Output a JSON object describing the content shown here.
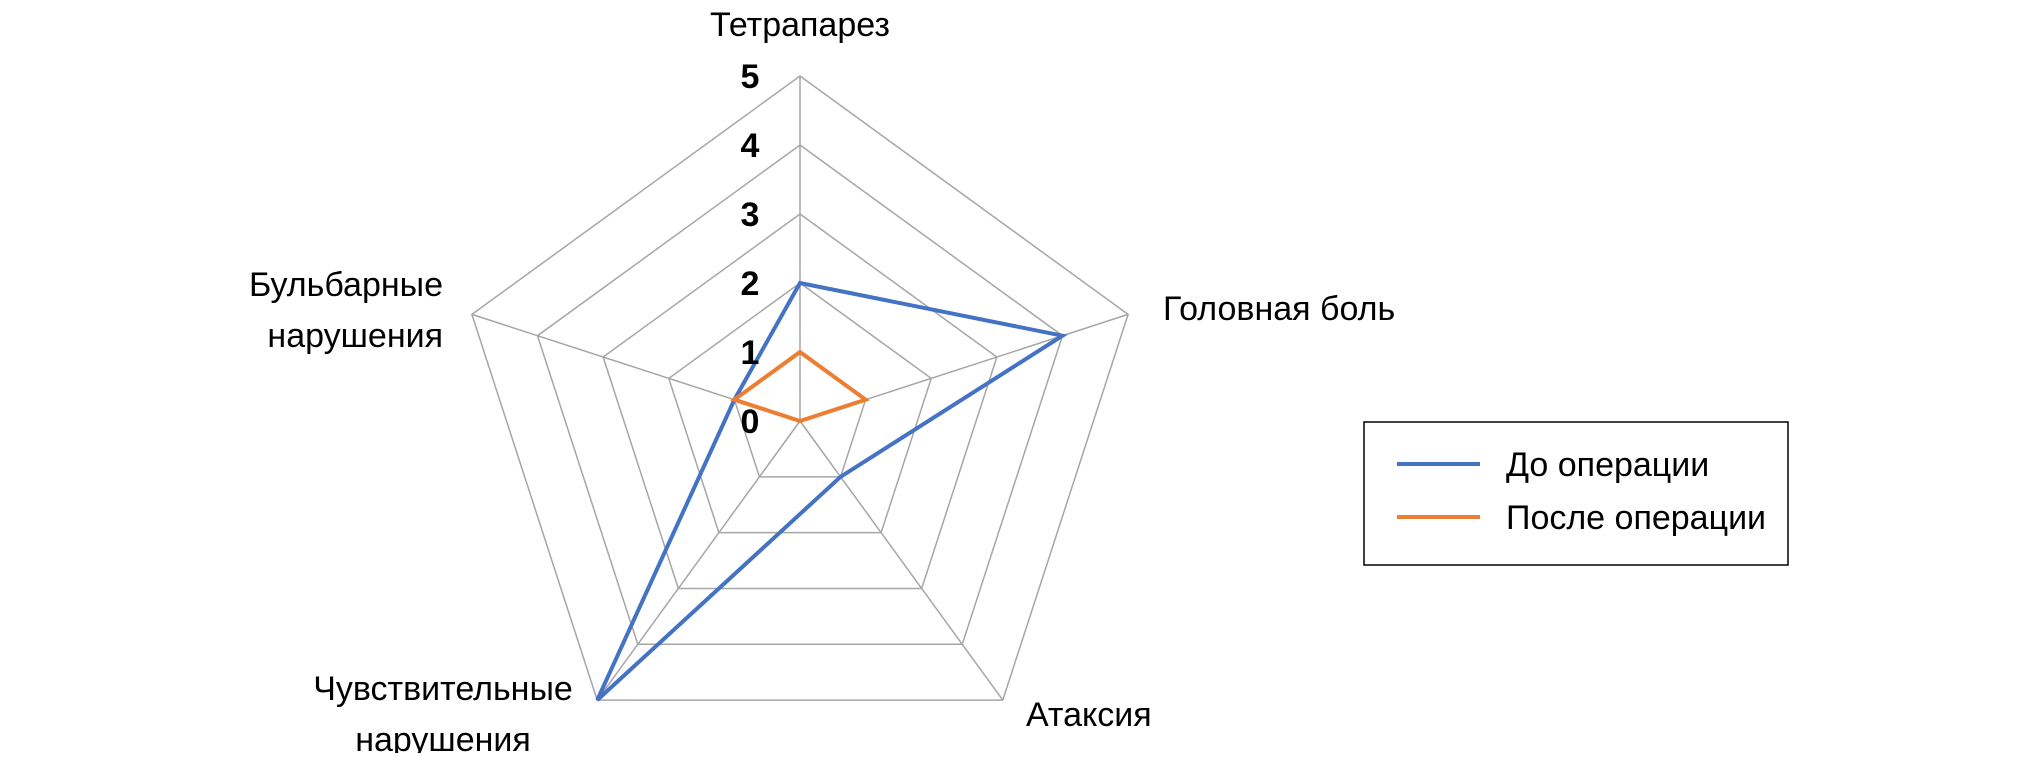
{
  "chart_data": {
    "type": "radar",
    "axes": [
      "Тетрапарез",
      "Головная боль",
      "Атаксия",
      "Чувствительные нарушения",
      "Бульбарные нарушения"
    ],
    "axis_label_lines": [
      [
        "Тетрапарез"
      ],
      [
        "Головная боль"
      ],
      [
        "Атаксия"
      ],
      [
        "Чувствительные",
        "нарушения"
      ],
      [
        "Бульбарные",
        "нарушения"
      ]
    ],
    "ticks": [
      "0",
      "1",
      "2",
      "3",
      "4",
      "5"
    ],
    "range": [
      0,
      5
    ],
    "grid": true,
    "legend_position": "right",
    "series": [
      {
        "name": "До операции",
        "values": [
          2,
          4,
          1,
          5,
          1
        ],
        "color": "#4472C4"
      },
      {
        "name": "После операции",
        "values": [
          1,
          1,
          0,
          0,
          1
        ],
        "color": "#ED7D31"
      }
    ],
    "grid_color": "#A6A6A6"
  }
}
